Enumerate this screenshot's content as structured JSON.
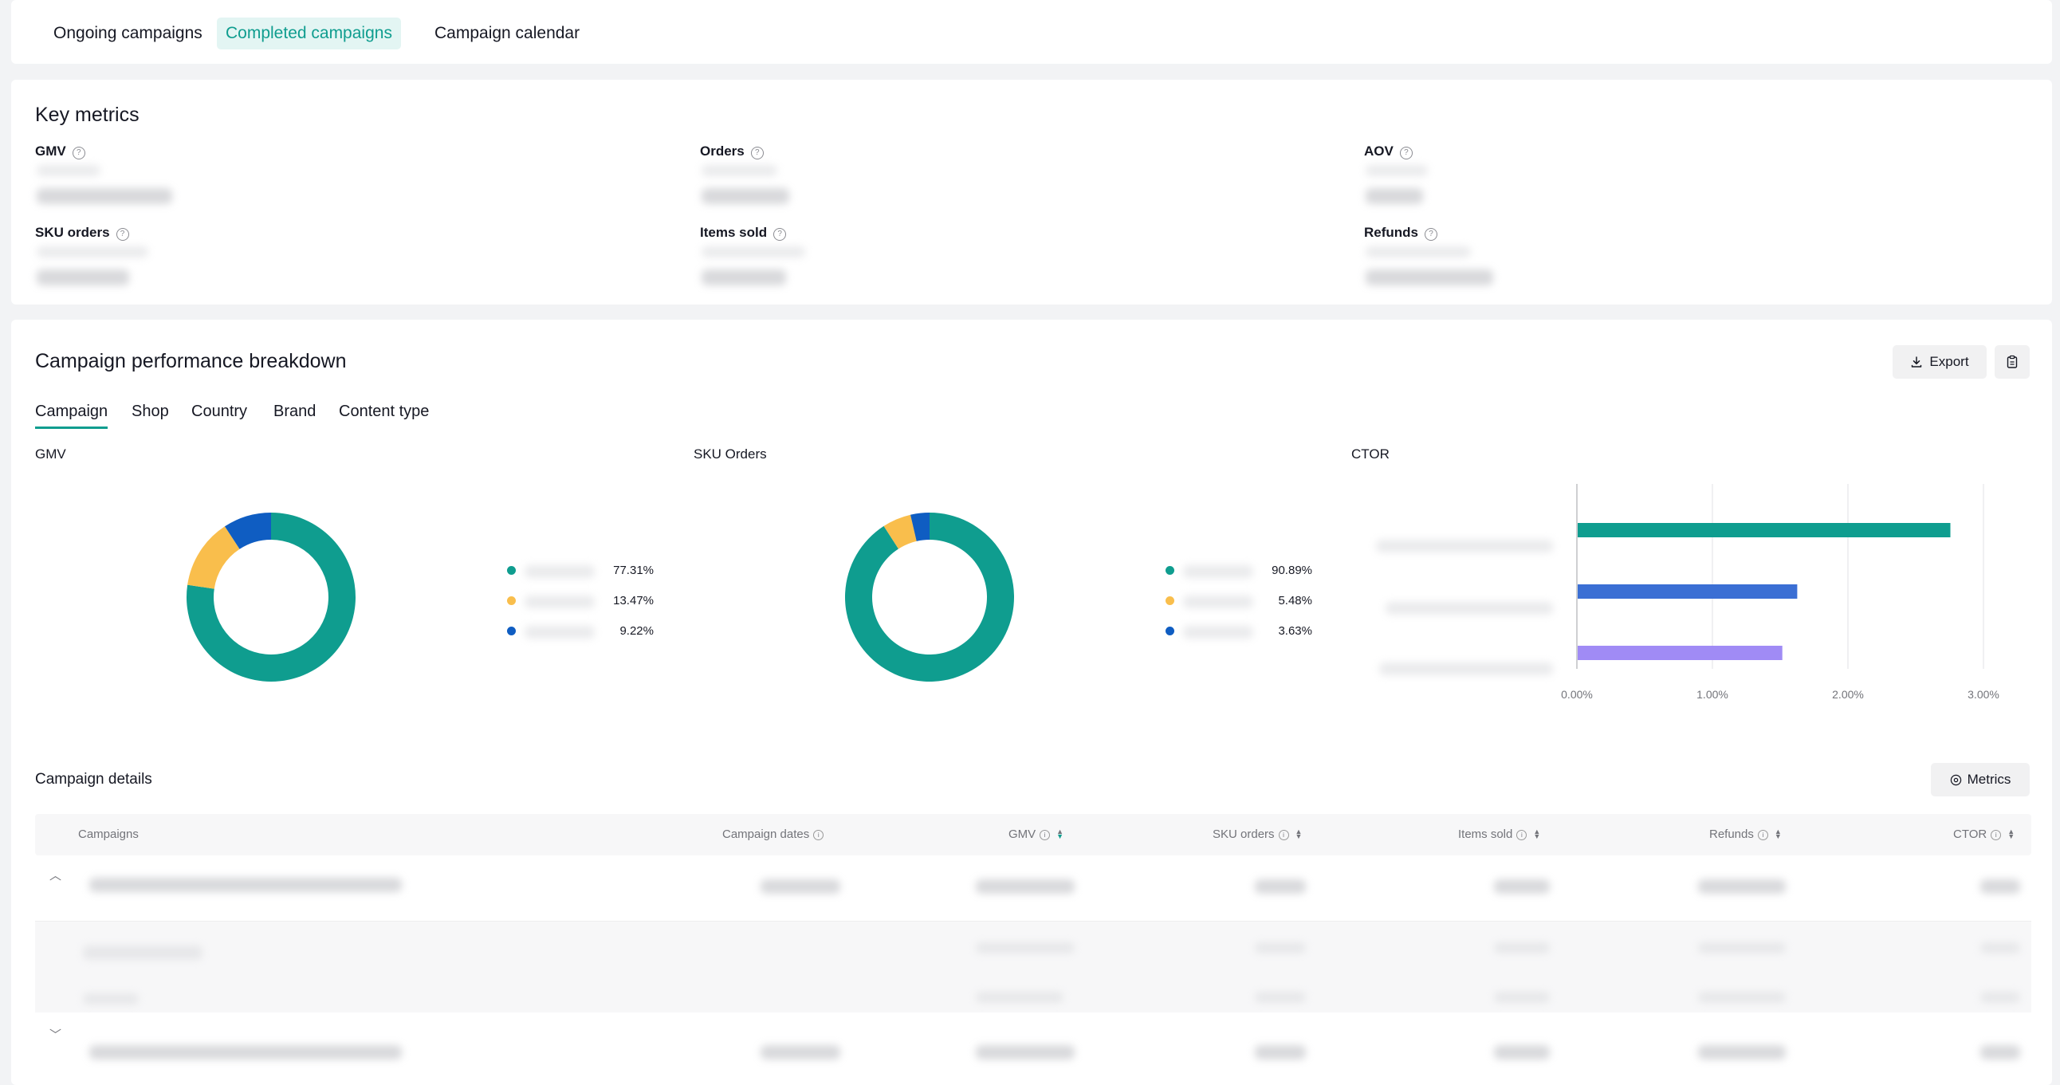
{
  "nav": {
    "tabs": [
      {
        "label": "Ongoing campaigns",
        "active": false
      },
      {
        "label": "Completed campaigns",
        "active": true
      },
      {
        "label": "Campaign calendar",
        "active": false
      }
    ]
  },
  "key_metrics": {
    "title": "Key metrics",
    "items": [
      {
        "label": "GMV"
      },
      {
        "label": "Orders"
      },
      {
        "label": "AOV"
      },
      {
        "label": "SKU orders"
      },
      {
        "label": "Items sold"
      },
      {
        "label": "Refunds"
      }
    ]
  },
  "breakdown": {
    "title": "Campaign performance breakdown",
    "export_label": "Export",
    "tabs": [
      "Campaign",
      "Shop",
      "Country",
      "Brand",
      "Content type"
    ],
    "active_tab": "Campaign"
  },
  "colors": {
    "teal": "#0f9d8f",
    "yellow": "#f9be4c",
    "blue": "#0f5dc2",
    "bar_blue": "#3b6fd4",
    "bar_purple": "#a08bf5"
  },
  "chart_data": [
    {
      "type": "pie",
      "title": "GMV",
      "values": [
        77.31,
        13.47,
        9.22
      ],
      "labels": [
        "77.31%",
        "13.47%",
        "9.22%"
      ],
      "colors": [
        "#0f9d8f",
        "#f9be4c",
        "#0f5dc2"
      ]
    },
    {
      "type": "pie",
      "title": "SKU Orders",
      "values": [
        90.89,
        5.48,
        3.63
      ],
      "labels": [
        "90.89%",
        "5.48%",
        "3.63%"
      ],
      "colors": [
        "#0f9d8f",
        "#f9be4c",
        "#0f5dc2"
      ]
    },
    {
      "type": "bar",
      "orientation": "horizontal",
      "title": "CTOR",
      "values": [
        2.75,
        1.62,
        1.51
      ],
      "colors": [
        "#0f9d8f",
        "#3b6fd4",
        "#a08bf5"
      ],
      "xlim": [
        0,
        3
      ],
      "x_ticks": [
        "0.00%",
        "1.00%",
        "2.00%",
        "3.00%"
      ],
      "grid": true
    }
  ],
  "details": {
    "title": "Campaign details",
    "metrics_button": "Metrics",
    "columns": [
      "Campaigns",
      "Campaign dates",
      "GMV",
      "SKU orders",
      "Items sold",
      "Refunds",
      "CTOR"
    ]
  }
}
